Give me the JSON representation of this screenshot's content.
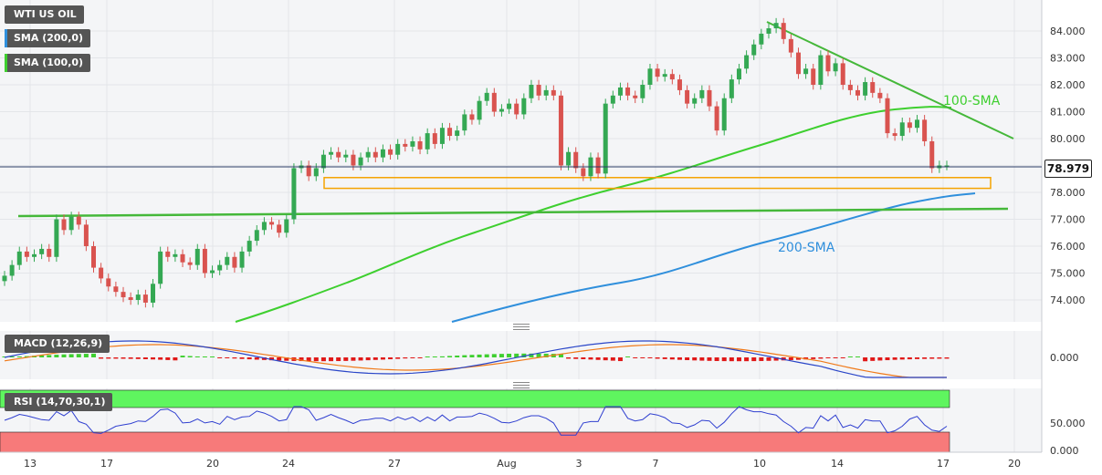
{
  "instrument_label": "WTI US OIL",
  "legend": {
    "sma200": "SMA (200,0)",
    "sma100": "SMA (100,0)",
    "macd": "MACD (12,26,9)",
    "rsi": "RSI (14,70,30,1)"
  },
  "colors": {
    "up": "#34a853",
    "down": "#d9534f",
    "sma100": "#3ecf2f",
    "sma200": "#2f8fdc",
    "trend": "#45b83a",
    "zone": "#f5a300",
    "macd_line": "#2a46c8",
    "signal_line": "#f07a1a",
    "rsi_line": "#2f3fd0",
    "rsi_overbought": "#5ff55f",
    "rsi_oversold": "#f77a7a"
  },
  "last_price": "78.979",
  "chart_data": {
    "type": "candlestick",
    "title": "WTI US OIL",
    "x_ticks": [
      "13",
      "17",
      "20",
      "24",
      "27",
      "Aug",
      "3",
      "7",
      "10",
      "14",
      "17",
      "20"
    ],
    "price_axis": {
      "ticks": [
        "84.000",
        "83.000",
        "82.000",
        "81.000",
        "80.000",
        "79.000",
        "78.000",
        "77.000",
        "76.000",
        "75.000",
        "74.000"
      ],
      "ylim": [
        73.2,
        84.7
      ]
    },
    "annotations": [
      "100-SMA",
      "200-SMA"
    ],
    "support_zone": [
      78.15,
      78.55
    ],
    "candles_close": [
      74.9,
      75.3,
      75.8,
      75.6,
      75.7,
      75.9,
      75.6,
      77.0,
      76.6,
      77.1,
      76.8,
      76.0,
      75.2,
      74.8,
      74.5,
      74.3,
      74.1,
      74.0,
      74.2,
      73.9,
      74.6,
      75.8,
      75.6,
      75.7,
      75.4,
      75.3,
      75.9,
      75.0,
      75.1,
      75.3,
      75.6,
      75.2,
      75.8,
      76.2,
      76.6,
      76.9,
      76.8,
      76.5,
      77.0,
      78.9,
      79.0,
      78.6,
      78.9,
      79.4,
      79.5,
      79.3,
      79.4,
      79.0,
      79.3,
      79.5,
      79.3,
      79.6,
      79.4,
      79.8,
      79.7,
      79.9,
      79.6,
      80.2,
      79.8,
      80.4,
      80.1,
      80.3,
      80.9,
      80.7,
      81.4,
      81.7,
      81.0,
      81.1,
      81.3,
      80.9,
      81.5,
      82.0,
      81.6,
      81.8,
      81.6,
      79.0,
      79.5,
      78.9,
      78.6,
      79.3,
      78.7,
      81.3,
      81.6,
      81.9,
      81.6,
      81.5,
      82.0,
      82.6,
      82.3,
      82.4,
      82.2,
      81.8,
      81.3,
      81.5,
      81.8,
      81.2,
      80.3,
      81.5,
      82.2,
      82.6,
      83.1,
      83.5,
      83.9,
      84.1,
      84.3,
      83.7,
      83.2,
      82.4,
      82.6,
      82.0,
      83.1,
      82.5,
      82.8,
      82.0,
      81.8,
      81.6,
      82.1,
      81.7,
      81.5,
      80.2,
      80.1,
      80.6,
      80.4,
      80.7,
      79.9,
      78.9,
      79.0,
      79.0
    ],
    "rsi_levels": {
      "overbought": 70,
      "oversold": 30
    },
    "rsi_axis_ticks": [
      "50.000",
      "0.000"
    ],
    "macd_axis_ticks": [
      "0.000"
    ]
  }
}
